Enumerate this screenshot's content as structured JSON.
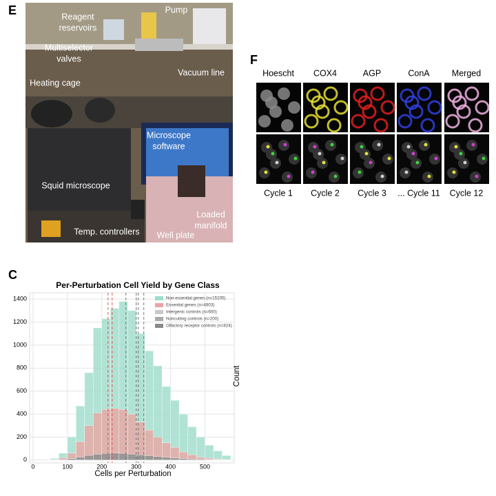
{
  "panel_e": {
    "label": "E",
    "annotations": [
      [
        "Reagent",
        "reservoirs"
      ],
      [
        "Pump"
      ],
      [
        "Multiselector",
        "valves"
      ],
      [
        "Vacuum line"
      ],
      [
        "Heating cage"
      ],
      [
        "Microscope",
        "software"
      ],
      [
        "Squid microscope"
      ],
      [
        "Loaded",
        "manifold"
      ],
      [
        "Temp. controllers"
      ],
      [
        "Well plate"
      ]
    ]
  },
  "panel_f": {
    "label": "F",
    "channels": [
      "Hoescht",
      "COX4",
      "AGP",
      "ConA",
      "Merged"
    ],
    "cycles": [
      "Cycle 1",
      "Cycle 2",
      "Cycle 3",
      "... Cycle 11",
      "Cycle 12"
    ]
  },
  "chart_data": {
    "type": "histogram",
    "panel_label": "C",
    "title": "Per-Perturbation Cell Yield by Gene Class",
    "xlabel": "Cells per Perturbation",
    "ylabel": "Count",
    "bins": [
      50,
      75,
      100,
      125,
      150,
      175,
      200,
      225,
      250,
      275,
      300,
      325,
      350,
      375,
      400,
      425,
      450,
      475,
      500,
      525,
      550,
      575
    ],
    "series": [
      {
        "name": "Non-essential genes (n=15205)",
        "color": "#9edccb",
        "values": [
          15,
          60,
          200,
          470,
          760,
          1150,
          1230,
          1320,
          1380,
          1300,
          1100,
          950,
          820,
          640,
          520,
          400,
          290,
          200,
          130,
          80,
          40
        ]
      },
      {
        "name": "Essential genes (n=4903)",
        "color": "#eaa5a3",
        "values": [
          5,
          20,
          60,
          160,
          300,
          410,
          440,
          450,
          440,
          400,
          330,
          260,
          200,
          150,
          110,
          70,
          45,
          25,
          15,
          8,
          4
        ]
      },
      {
        "name": "Intergenic controls (n=600)",
        "color": "#c9c9c9",
        "values": [
          1,
          2,
          5,
          10,
          18,
          25,
          30,
          35,
          35,
          33,
          30,
          25,
          20,
          16,
          12,
          9,
          6,
          4,
          3,
          2,
          1
        ]
      },
      {
        "name": "Noncutting controls (n=200)",
        "color": "#a9a9a9",
        "values": [
          0,
          1,
          2,
          4,
          7,
          10,
          12,
          13,
          13,
          12,
          11,
          9,
          8,
          6,
          5,
          4,
          3,
          2,
          1,
          1,
          0
        ]
      },
      {
        "name": "Olfactory receptor controls (n=824)",
        "color": "#8a8a8a",
        "values": [
          2,
          5,
          12,
          25,
          40,
          50,
          58,
          60,
          58,
          52,
          45,
          38,
          30,
          24,
          18,
          13,
          9,
          6,
          4,
          2,
          1
        ]
      }
    ],
    "reference_lines": [
      {
        "value": 218,
        "color": "#d9534f"
      },
      {
        "value": 230,
        "color": "#d9534f"
      },
      {
        "value": 270,
        "color": "#777777"
      },
      {
        "value": 300,
        "color": "#777777"
      },
      {
        "value": 306,
        "color": "#777777"
      },
      {
        "value": 322,
        "color": "#777777"
      }
    ],
    "xlim": [
      -10,
      585
    ],
    "ylim": [
      -25,
      1455
    ],
    "xticks": [
      0,
      100,
      200,
      300,
      400,
      500
    ],
    "yticks": [
      0,
      200,
      400,
      600,
      800,
      1000,
      1200,
      1400
    ],
    "grid": true,
    "legend": "upper right"
  }
}
